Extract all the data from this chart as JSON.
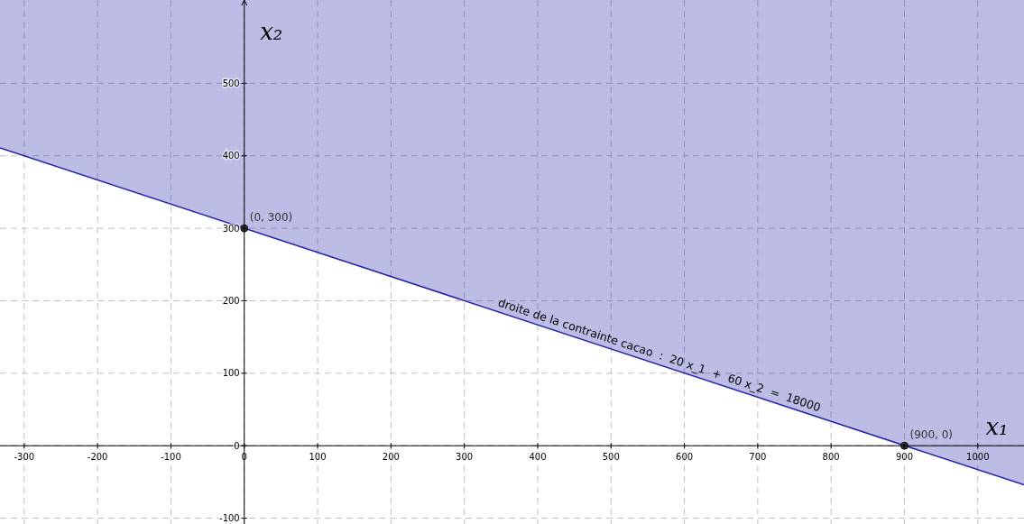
{
  "chart_data": {
    "type": "line",
    "xlabel": "x₁",
    "ylabel": "x₂",
    "xlim": [
      -333,
      1063
    ],
    "ylim": [
      -108,
      615
    ],
    "xticks": [
      -300,
      -200,
      -100,
      0,
      100,
      200,
      300,
      400,
      500,
      600,
      700,
      800,
      900,
      1000
    ],
    "yticks": [
      -100,
      0,
      100,
      200,
      300,
      400,
      500
    ],
    "grid": true,
    "line_style": "solid",
    "series": [
      {
        "color": "#2222aa",
        "x": [
          -333,
          1063
        ],
        "values": [
          411,
          -54
        ],
        "lower": [
          411,
          -54
        ],
        "upper": [
          615,
          615
        ]
      },
      {
        "type": "scatter",
        "color": "#333333",
        "marker": "circle",
        "x": [
          0,
          900
        ],
        "values": [
          300,
          0
        ]
      }
    ],
    "annotations": [
      {
        "text": "(0, 300)",
        "x": 0,
        "y": 300
      },
      {
        "text": "(900, 0)",
        "x": 900,
        "y": 0
      },
      {
        "text": "droite de la contrainte cacao  :  20 x_1  +  60 x_2  =  18000",
        "x": 562,
        "y": 113
      }
    ]
  }
}
